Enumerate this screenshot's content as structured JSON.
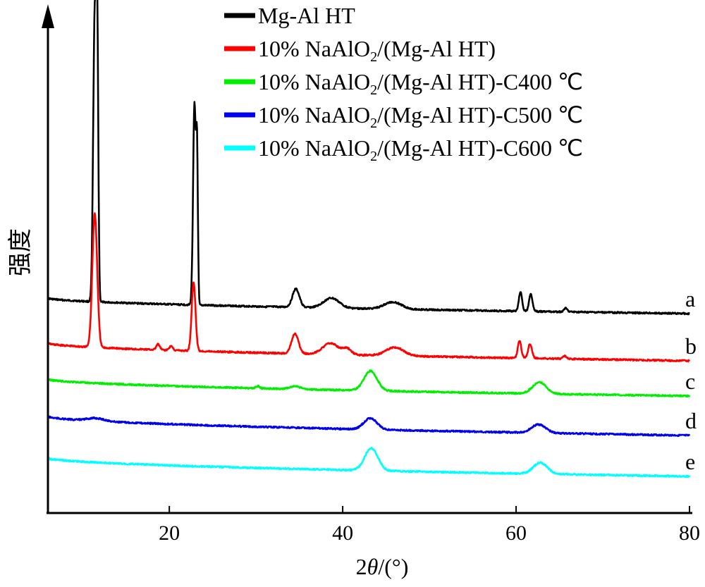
{
  "chart_data": {
    "type": "line",
    "xlabel_prefix": "2",
    "xlabel_var": "θ",
    "xlabel_unit": "/(°)",
    "ylabel": "强度",
    "xlim": [
      6,
      80
    ],
    "x_ticks": [
      20,
      40,
      60,
      80
    ],
    "y_ticks_shown": false,
    "legend_position": "top-right",
    "series": [
      {
        "name": "Mg-Al HT",
        "name_main": "Mg-Al HT",
        "name_sub": "",
        "name_tail": "",
        "tag": "a",
        "color": "#000000",
        "baseline": 423,
        "baseline_end": 445,
        "peaks": [
          [
            11.4,
            410,
            0.18
          ],
          [
            11.7,
            330,
            0.12
          ],
          [
            22.9,
            285,
            0.16
          ],
          [
            23.2,
            200,
            0.1
          ],
          [
            34.6,
            26,
            0.4
          ],
          [
            38.7,
            14,
            0.9
          ],
          [
            45.8,
            10,
            1.0
          ],
          [
            60.5,
            28,
            0.18
          ],
          [
            61.7,
            24,
            0.2
          ],
          [
            65.7,
            5,
            0.2
          ]
        ]
      },
      {
        "name": "10% NaAlO2/(Mg-Al HT)",
        "name_main": "10% NaAlO",
        "name_sub": "2",
        "name_tail": "/(Mg-Al HT)",
        "tag": "b",
        "color": "#ff0000",
        "baseline": 487,
        "baseline_end": 512,
        "peaks": [
          [
            11.4,
            190,
            0.28
          ],
          [
            18.7,
            8,
            0.2
          ],
          [
            20.2,
            6,
            0.2
          ],
          [
            22.8,
            98,
            0.22
          ],
          [
            34.5,
            28,
            0.4
          ],
          [
            38.6,
            16,
            0.9
          ],
          [
            40.5,
            8,
            0.5
          ],
          [
            46.0,
            12,
            1.0
          ],
          [
            60.4,
            24,
            0.2
          ],
          [
            61.6,
            20,
            0.22
          ],
          [
            65.6,
            4,
            0.2
          ]
        ]
      },
      {
        "name": "10% NaAlO2/(Mg-Al HT)-C400 ℃",
        "name_main": "10% NaAlO",
        "name_sub": "2",
        "name_tail": "/(Mg-Al HT)-C400 ℃",
        "tag": "c",
        "color": "#00ee00",
        "baseline": 538,
        "baseline_end": 562,
        "peaks": [
          [
            43.2,
            28,
            0.75
          ],
          [
            62.7,
            16,
            0.8
          ],
          [
            34.5,
            4,
            0.6
          ],
          [
            30.2,
            3,
            0.2
          ]
        ]
      },
      {
        "name": "10% NaAlO2/(Mg-Al HT)-C500 ℃",
        "name_main": "10% NaAlO",
        "name_sub": "2",
        "name_tail": "/(Mg-Al HT)-C500 ℃",
        "tag": "d",
        "color": "#0000ee",
        "baseline": 591,
        "baseline_end": 618,
        "peaks": [
          [
            43.2,
            16,
            0.75
          ],
          [
            62.6,
            12,
            0.8
          ],
          [
            11.5,
            4,
            1.0
          ]
        ]
      },
      {
        "name": "10% NaAlO2/(Mg-Al HT)-C600 ℃",
        "name_main": "10% NaAlO",
        "name_sub": "2",
        "name_tail": "/(Mg-Al HT)-C600 ℃",
        "tag": "e",
        "color": "#00ffff",
        "baseline": 650,
        "baseline_end": 676,
        "peaks": [
          [
            43.3,
            32,
            0.75
          ],
          [
            62.8,
            16,
            0.8
          ]
        ]
      }
    ]
  }
}
